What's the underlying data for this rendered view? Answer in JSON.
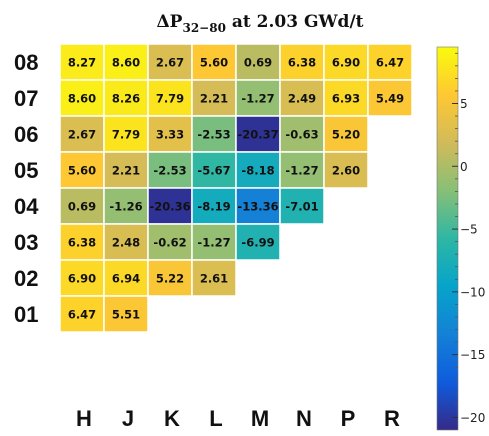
{
  "chart_data": {
    "type": "heatmap",
    "title_prefix": "ΔP",
    "title_sub": "32−80",
    "title_rest": " at 2.03 GWd/t",
    "x_labels": [
      "H",
      "J",
      "K",
      "L",
      "M",
      "N",
      "P",
      "R"
    ],
    "y_labels": [
      "08",
      "07",
      "06",
      "05",
      "04",
      "03",
      "02",
      "01"
    ],
    "rows": [
      [
        8.27,
        8.6,
        2.67,
        5.6,
        0.69,
        6.38,
        6.9,
        6.47
      ],
      [
        8.6,
        8.26,
        7.79,
        2.21,
        -1.27,
        2.49,
        6.93,
        5.49
      ],
      [
        2.67,
        7.79,
        3.33,
        -2.53,
        -20.37,
        -0.63,
        5.2,
        null
      ],
      [
        5.6,
        2.21,
        -2.53,
        -5.67,
        -8.18,
        -1.27,
        2.6,
        null
      ],
      [
        0.69,
        -1.26,
        -20.36,
        -8.19,
        -13.36,
        -7.01,
        null,
        null
      ],
      [
        6.38,
        2.48,
        -0.62,
        -1.27,
        -6.99,
        null,
        null,
        null
      ],
      [
        6.9,
        6.94,
        5.22,
        2.61,
        null,
        null,
        null,
        null
      ],
      [
        6.47,
        5.51,
        null,
        null,
        null,
        null,
        null,
        null
      ]
    ],
    "cell_labels": [
      [
        "8.27",
        "8.60",
        "2.67",
        "5.60",
        "0.69",
        "6.38",
        "6.90",
        "6.47"
      ],
      [
        "8.60",
        "8.26",
        "7.79",
        "2.21",
        "-1.27",
        "2.49",
        "6.93",
        "5.49"
      ],
      [
        "2.67",
        "7.79",
        "3.33",
        "-2.53",
        "-20.37",
        "-0.63",
        "5.20"
      ],
      [
        "5.60",
        "2.21",
        "-2.53",
        "-5.67",
        "-8.18",
        "-1.27",
        "2.60"
      ],
      [
        "0.69",
        "-1.26",
        "-20.36",
        "-8.19",
        "-13.36",
        "-7.01"
      ],
      [
        "6.38",
        "2.48",
        "-0.62",
        "-1.27",
        "-6.99"
      ],
      [
        "6.90",
        "6.94",
        "5.22",
        "2.61"
      ],
      [
        "6.47",
        "5.51"
      ]
    ],
    "zlim": [
      -21,
      9.5
    ],
    "colorbar_ticks": [
      5,
      0,
      -5,
      -10,
      -15,
      -20
    ],
    "colorbar_tick_labels": [
      "5",
      "0",
      "−5",
      "−10",
      "−15",
      "−20"
    ],
    "colorscale": [
      "#352a87",
      "#0f5cdd",
      "#1481d6",
      "#06a4ca",
      "#2eb7a4",
      "#87bf77",
      "#d1bb59",
      "#fec832",
      "#f9fb0e"
    ]
  }
}
